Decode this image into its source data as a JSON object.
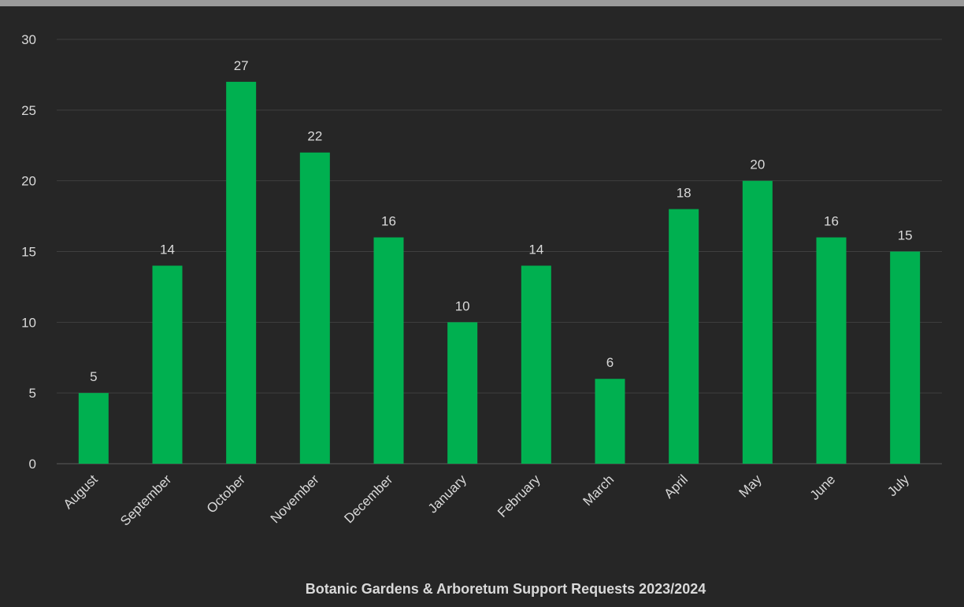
{
  "chart_data": {
    "type": "bar",
    "title": "Botanic Gardens & Arboretum Support Requests 2023/2024",
    "xlabel": "",
    "ylabel": "",
    "categories": [
      "August",
      "September",
      "October",
      "November",
      "December",
      "January",
      "February",
      "March",
      "April",
      "May",
      "June",
      "July"
    ],
    "values": [
      5,
      14,
      27,
      22,
      16,
      10,
      14,
      6,
      18,
      20,
      16,
      15
    ],
    "ylim": [
      0,
      30
    ],
    "yticks": [
      0,
      5,
      10,
      15,
      20,
      25,
      30
    ],
    "grid": true,
    "legend": "none",
    "bar_color": "#00b050",
    "background_color": "#262626"
  }
}
